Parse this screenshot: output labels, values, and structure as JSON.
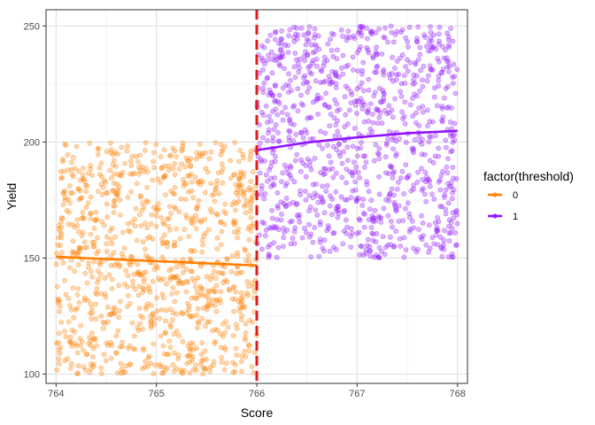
{
  "chart_data": {
    "type": "scatter",
    "xlabel": "Score",
    "ylabel": "Yield",
    "xlim": [
      763.9,
      768.1
    ],
    "ylim": [
      96,
      257
    ],
    "x_ticks": [
      "764",
      "765",
      "766",
      "767",
      "768"
    ],
    "y_ticks": [
      "100",
      "150",
      "200",
      "250"
    ],
    "x_tick_values": [
      764,
      765,
      766,
      767,
      768
    ],
    "y_tick_values": [
      100,
      150,
      200,
      250
    ],
    "grid": true,
    "threshold": 766,
    "threshold_color": "#e31a1c",
    "legend": {
      "title": "factor(threshold)",
      "placement": "right",
      "entries": [
        "0",
        "1"
      ]
    },
    "series": [
      {
        "name": "0",
        "color": "#ff7f00",
        "x_range": [
          764,
          766
        ],
        "y_range": [
          100,
          200
        ],
        "point_count": 1000,
        "fit_line": [
          [
            764,
            150.5
          ],
          [
            766,
            146.8
          ]
        ]
      },
      {
        "name": "1",
        "color": "#9013fe",
        "x_range": [
          766,
          768
        ],
        "y_range": [
          150,
          250
        ],
        "point_count": 1000,
        "fit_line": [
          [
            766,
            196.5
          ],
          [
            766.5,
            199.8
          ],
          [
            767,
            202.0
          ],
          [
            767.5,
            203.8
          ],
          [
            768,
            204.8
          ]
        ]
      }
    ]
  }
}
